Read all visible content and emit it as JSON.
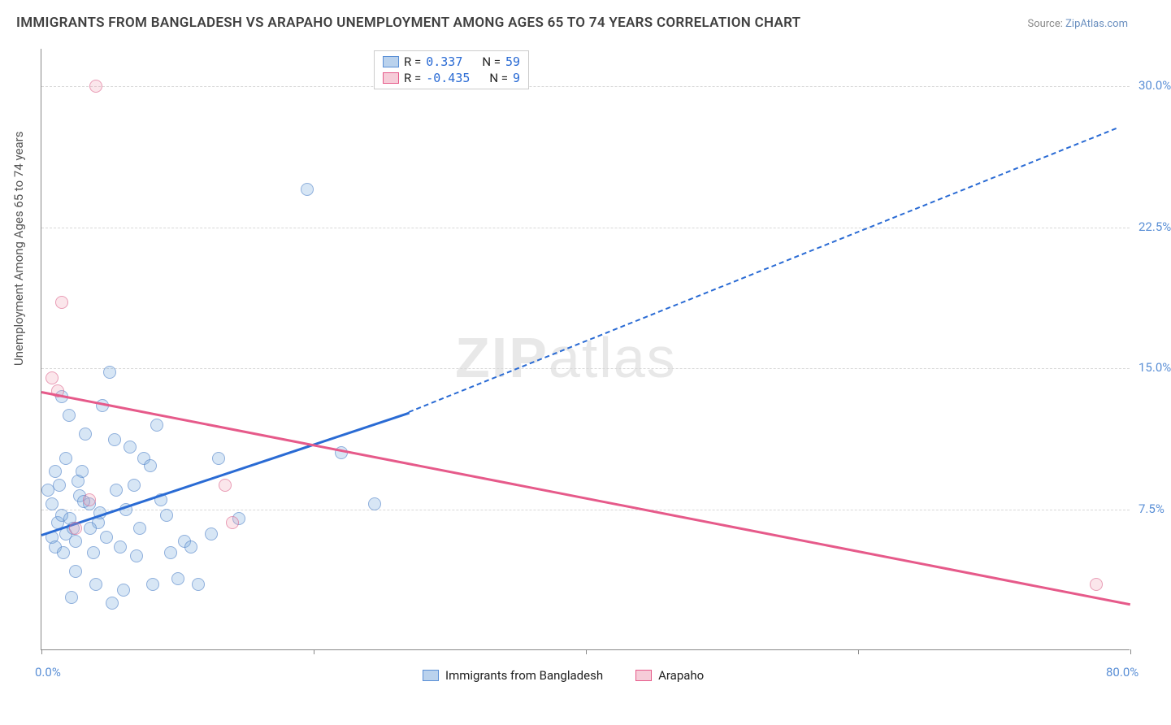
{
  "title": "IMMIGRANTS FROM BANGLADESH VS ARAPAHO UNEMPLOYMENT AMONG AGES 65 TO 74 YEARS CORRELATION CHART",
  "source_prefix": "Source: ",
  "source_link": "ZipAtlas.com",
  "y_axis_label": "Unemployment Among Ages 65 to 74 years",
  "watermark_a": "ZIP",
  "watermark_b": "atlas",
  "chart": {
    "type": "scatter",
    "xlim": [
      0,
      80
    ],
    "ylim": [
      0,
      32
    ],
    "x_ticks": [
      0,
      20,
      40,
      60,
      80
    ],
    "x_tick_labels": [
      "0.0%",
      "",
      "",
      "",
      "80.0%"
    ],
    "y_ticks": [
      7.5,
      15.0,
      22.5,
      30.0
    ],
    "y_tick_labels": [
      "7.5%",
      "15.0%",
      "22.5%",
      "30.0%"
    ],
    "grid_color": "#d8d8d8",
    "background_color": "#ffffff",
    "axis_color": "#888888",
    "series": [
      {
        "name": "Immigrants from Bangladesh",
        "color_fill": "rgba(120,170,220,0.4)",
        "color_stroke": "#508cc8",
        "marker_size": 16,
        "R": "0.337",
        "N": "59",
        "trend": {
          "x1": 0,
          "y1": 6.2,
          "x2": 27,
          "y2": 12.7,
          "dash_to_x": 79,
          "dash_to_y": 27.8,
          "color": "#2a6bd4"
        },
        "points": [
          [
            1.2,
            6.8
          ],
          [
            1.5,
            7.2
          ],
          [
            0.8,
            6.0
          ],
          [
            2.1,
            7.0
          ],
          [
            1.0,
            5.5
          ],
          [
            2.8,
            8.2
          ],
          [
            3.5,
            7.8
          ],
          [
            1.8,
            6.2
          ],
          [
            2.5,
            5.8
          ],
          [
            4.2,
            6.8
          ],
          [
            3.0,
            9.5
          ],
          [
            5.5,
            8.5
          ],
          [
            6.2,
            7.5
          ],
          [
            4.8,
            6.0
          ],
          [
            7.5,
            10.2
          ],
          [
            8.0,
            9.8
          ],
          [
            6.5,
            10.8
          ],
          [
            9.2,
            7.2
          ],
          [
            10.5,
            5.8
          ],
          [
            3.2,
            11.5
          ],
          [
            2.0,
            12.5
          ],
          [
            4.5,
            13.0
          ],
          [
            5.0,
            14.8
          ],
          [
            1.5,
            13.5
          ],
          [
            8.5,
            12.0
          ],
          [
            11.0,
            5.5
          ],
          [
            12.5,
            6.2
          ],
          [
            4.0,
            3.5
          ],
          [
            6.0,
            3.2
          ],
          [
            8.2,
            3.5
          ],
          [
            10.0,
            3.8
          ],
          [
            2.2,
            2.8
          ],
          [
            5.2,
            2.5
          ],
          [
            7.0,
            5.0
          ],
          [
            9.5,
            5.2
          ],
          [
            0.5,
            8.5
          ],
          [
            1.0,
            9.5
          ],
          [
            1.8,
            10.2
          ],
          [
            3.8,
            5.2
          ],
          [
            5.8,
            5.5
          ],
          [
            7.2,
            6.5
          ],
          [
            8.8,
            8.0
          ],
          [
            2.5,
            4.2
          ],
          [
            11.5,
            3.5
          ],
          [
            13.0,
            10.2
          ],
          [
            14.5,
            7.0
          ],
          [
            22.0,
            10.5
          ],
          [
            24.5,
            7.8
          ],
          [
            19.5,
            24.5
          ],
          [
            0.8,
            7.8
          ],
          [
            1.3,
            8.8
          ],
          [
            2.7,
            9.0
          ],
          [
            3.6,
            6.5
          ],
          [
            4.3,
            7.3
          ],
          [
            5.4,
            11.2
          ],
          [
            6.8,
            8.8
          ],
          [
            2.3,
            6.5
          ],
          [
            3.1,
            7.9
          ],
          [
            1.6,
            5.2
          ]
        ]
      },
      {
        "name": "Arapaho",
        "color_fill": "rgba(240,160,180,0.35)",
        "color_stroke": "#dc648c",
        "marker_size": 16,
        "R": "-0.435",
        "N": "9",
        "trend": {
          "x1": 0,
          "y1": 13.8,
          "x2": 80,
          "y2": 2.5,
          "color": "#e65a8a"
        },
        "points": [
          [
            4.0,
            30.0
          ],
          [
            1.5,
            18.5
          ],
          [
            0.8,
            14.5
          ],
          [
            1.2,
            13.8
          ],
          [
            3.5,
            8.0
          ],
          [
            13.5,
            8.8
          ],
          [
            14.0,
            6.8
          ],
          [
            77.5,
            3.5
          ],
          [
            2.5,
            6.5
          ]
        ]
      }
    ]
  },
  "legend_top": [
    {
      "swatch": "blue",
      "R_label": "R =",
      "R_val": " 0.337",
      "N_label": "N =",
      "N_val": "59"
    },
    {
      "swatch": "pink",
      "R_label": "R =",
      "R_val": "-0.435",
      "N_label": "N =",
      "N_val": " 9"
    }
  ],
  "legend_bottom": [
    {
      "swatch": "blue",
      "label": "Immigrants from Bangladesh"
    },
    {
      "swatch": "pink",
      "label": "Arapaho"
    }
  ]
}
